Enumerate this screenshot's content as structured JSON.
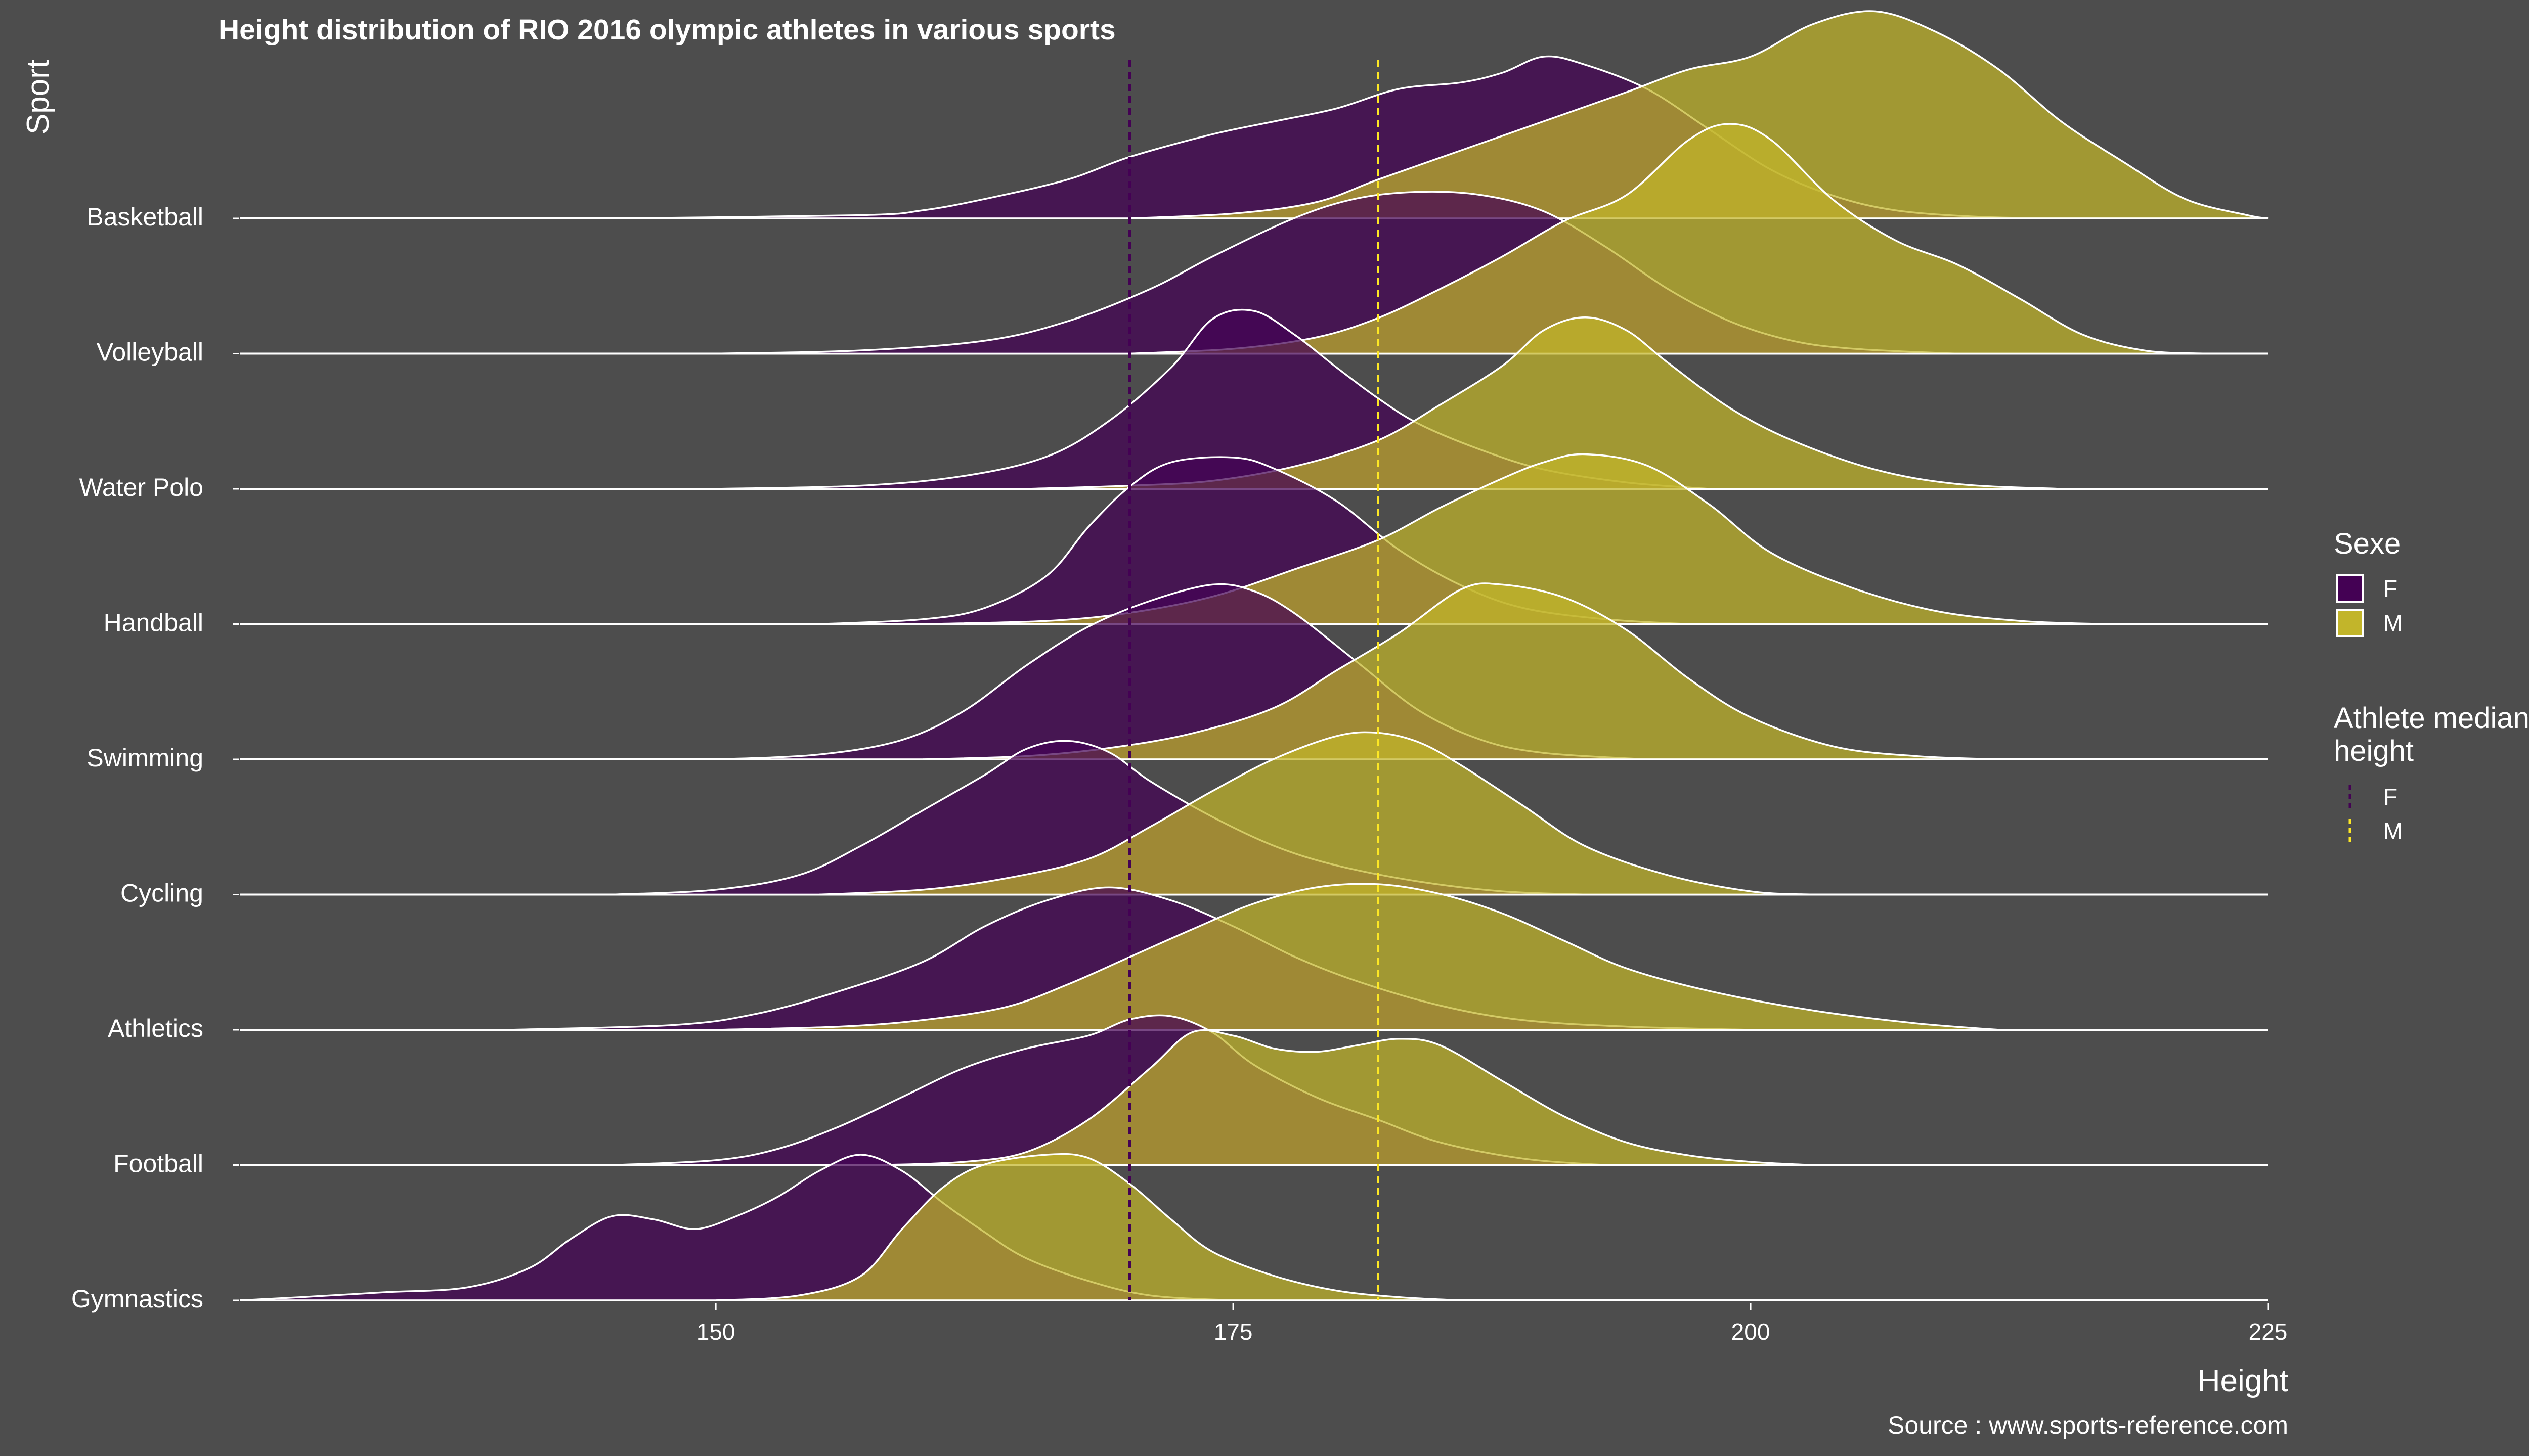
{
  "chart_data": {
    "type": "ridgeline",
    "title": "Height distribution of RIO 2016 olympic athletes in various sports",
    "xlabel": "Height",
    "ylabel": "Sport",
    "caption": "Source : www.sports-reference.com",
    "xlim": [
      127,
      225
    ],
    "xticks": [
      150,
      175,
      200,
      225
    ],
    "grid": false,
    "colors": {
      "background": "#4d4d4d",
      "F": "#440154",
      "M": "#c2b52a",
      "F_line": "#440154",
      "M_line": "#fde725",
      "outline": "#ffffff"
    },
    "legend": {
      "placement": "right",
      "sexe": {
        "title": "Sexe",
        "items": [
          {
            "label": "F",
            "key": "F"
          },
          {
            "label": "M",
            "key": "M"
          }
        ]
      },
      "median": {
        "title_line1": "Athlete median",
        "title_line2": "height",
        "items": [
          {
            "label": "F",
            "key": "F"
          },
          {
            "label": "M",
            "key": "M"
          }
        ]
      }
    },
    "median_height": {
      "F": 170,
      "M": 182
    },
    "sports": [
      {
        "name": "Basketball",
        "F": [
          [
            145,
            0
          ],
          [
            157,
            0.02
          ],
          [
            160,
            0.05
          ],
          [
            163,
            0.12
          ],
          [
            167,
            0.24
          ],
          [
            170,
            0.38
          ],
          [
            174,
            0.52
          ],
          [
            177,
            0.6
          ],
          [
            180,
            0.68
          ],
          [
            183,
            0.8
          ],
          [
            186,
            0.84
          ],
          [
            188,
            0.9
          ],
          [
            190,
            1.0
          ],
          [
            192,
            0.95
          ],
          [
            195,
            0.8
          ],
          [
            198,
            0.55
          ],
          [
            201,
            0.3
          ],
          [
            204,
            0.14
          ],
          [
            207,
            0.05
          ],
          [
            211,
            0.01
          ],
          [
            215,
            0
          ]
        ],
        "M": [
          [
            170,
            0
          ],
          [
            175,
            0.03
          ],
          [
            179,
            0.1
          ],
          [
            182,
            0.24
          ],
          [
            186,
            0.42
          ],
          [
            190,
            0.6
          ],
          [
            194,
            0.78
          ],
          [
            197,
            0.92
          ],
          [
            200,
            1.0
          ],
          [
            203,
            1.2
          ],
          [
            206,
            1.28
          ],
          [
            209,
            1.15
          ],
          [
            212,
            0.92
          ],
          [
            215,
            0.6
          ],
          [
            218,
            0.35
          ],
          [
            221,
            0.12
          ],
          [
            224,
            0.02
          ],
          [
            225,
            0
          ]
        ]
      },
      {
        "name": "Volleyball",
        "F": [
          [
            150,
            0
          ],
          [
            157,
            0.02
          ],
          [
            163,
            0.08
          ],
          [
            167,
            0.2
          ],
          [
            171,
            0.4
          ],
          [
            174,
            0.6
          ],
          [
            178,
            0.84
          ],
          [
            181,
            0.96
          ],
          [
            184,
            1.0
          ],
          [
            187,
            0.98
          ],
          [
            190,
            0.88
          ],
          [
            193,
            0.66
          ],
          [
            196,
            0.4
          ],
          [
            199,
            0.2
          ],
          [
            202,
            0.08
          ],
          [
            205,
            0.03
          ],
          [
            210,
            0
          ]
        ],
        "M": [
          [
            170,
            0
          ],
          [
            175,
            0.03
          ],
          [
            179,
            0.1
          ],
          [
            182,
            0.22
          ],
          [
            185,
            0.4
          ],
          [
            188,
            0.6
          ],
          [
            191,
            0.82
          ],
          [
            194,
            0.98
          ],
          [
            197,
            1.32
          ],
          [
            199,
            1.42
          ],
          [
            201,
            1.32
          ],
          [
            204,
            0.95
          ],
          [
            207,
            0.7
          ],
          [
            210,
            0.55
          ],
          [
            213,
            0.34
          ],
          [
            216,
            0.12
          ],
          [
            219,
            0.02
          ],
          [
            222,
            0
          ]
        ]
      },
      {
        "name": "Water Polo",
        "F": [
          [
            150,
            0
          ],
          [
            157,
            0.02
          ],
          [
            162,
            0.08
          ],
          [
            166,
            0.2
          ],
          [
            169,
            0.42
          ],
          [
            172,
            0.75
          ],
          [
            174,
            1.05
          ],
          [
            176,
            1.1
          ],
          [
            178,
            0.95
          ],
          [
            180,
            0.75
          ],
          [
            182,
            0.56
          ],
          [
            184,
            0.4
          ],
          [
            187,
            0.24
          ],
          [
            190,
            0.12
          ],
          [
            194,
            0.04
          ],
          [
            198,
            0
          ]
        ],
        "M": [
          [
            165,
            0
          ],
          [
            170,
            0.02
          ],
          [
            174,
            0.05
          ],
          [
            178,
            0.14
          ],
          [
            182,
            0.3
          ],
          [
            185,
            0.52
          ],
          [
            188,
            0.76
          ],
          [
            190,
            0.98
          ],
          [
            192,
            1.06
          ],
          [
            194,
            0.98
          ],
          [
            196,
            0.78
          ],
          [
            199,
            0.5
          ],
          [
            202,
            0.3
          ],
          [
            206,
            0.12
          ],
          [
            210,
            0.03
          ],
          [
            215,
            0
          ]
        ]
      },
      {
        "name": "Handball",
        "F": [
          [
            155,
            0
          ],
          [
            160,
            0.03
          ],
          [
            163,
            0.1
          ],
          [
            166,
            0.3
          ],
          [
            168,
            0.6
          ],
          [
            170,
            0.85
          ],
          [
            172,
            1.0
          ],
          [
            175,
            1.03
          ],
          [
            177,
            0.96
          ],
          [
            180,
            0.76
          ],
          [
            183,
            0.46
          ],
          [
            186,
            0.24
          ],
          [
            189,
            0.1
          ],
          [
            193,
            0.03
          ],
          [
            197,
            0
          ]
        ],
        "M": [
          [
            160,
            0
          ],
          [
            166,
            0.02
          ],
          [
            170,
            0.07
          ],
          [
            174,
            0.17
          ],
          [
            178,
            0.34
          ],
          [
            182,
            0.52
          ],
          [
            185,
            0.72
          ],
          [
            188,
            0.9
          ],
          [
            190,
            1.0
          ],
          [
            192,
            1.05
          ],
          [
            195,
            0.98
          ],
          [
            198,
            0.74
          ],
          [
            201,
            0.44
          ],
          [
            205,
            0.22
          ],
          [
            209,
            0.08
          ],
          [
            213,
            0.02
          ],
          [
            217,
            0
          ]
        ]
      },
      {
        "name": "Swimming",
        "F": [
          [
            150,
            0
          ],
          [
            155,
            0.03
          ],
          [
            159,
            0.12
          ],
          [
            162,
            0.3
          ],
          [
            165,
            0.58
          ],
          [
            168,
            0.82
          ],
          [
            171,
            0.98
          ],
          [
            174,
            1.08
          ],
          [
            176,
            1.04
          ],
          [
            178,
            0.9
          ],
          [
            181,
            0.6
          ],
          [
            184,
            0.3
          ],
          [
            187,
            0.12
          ],
          [
            190,
            0.04
          ],
          [
            195,
            0
          ]
        ],
        "M": [
          [
            160,
            0
          ],
          [
            165,
            0.02
          ],
          [
            169,
            0.07
          ],
          [
            173,
            0.16
          ],
          [
            177,
            0.32
          ],
          [
            180,
            0.55
          ],
          [
            183,
            0.78
          ],
          [
            186,
            1.05
          ],
          [
            188,
            1.08
          ],
          [
            191,
            1.0
          ],
          [
            194,
            0.8
          ],
          [
            197,
            0.5
          ],
          [
            200,
            0.26
          ],
          [
            204,
            0.08
          ],
          [
            208,
            0.02
          ],
          [
            212,
            0
          ]
        ]
      },
      {
        "name": "Cycling",
        "F": [
          [
            145,
            0
          ],
          [
            150,
            0.03
          ],
          [
            154,
            0.12
          ],
          [
            157,
            0.3
          ],
          [
            160,
            0.52
          ],
          [
            163,
            0.74
          ],
          [
            165,
            0.9
          ],
          [
            167,
            0.95
          ],
          [
            169,
            0.88
          ],
          [
            171,
            0.7
          ],
          [
            174,
            0.48
          ],
          [
            177,
            0.3
          ],
          [
            180,
            0.18
          ],
          [
            184,
            0.08
          ],
          [
            188,
            0.02
          ],
          [
            192,
            0
          ]
        ],
        "M": [
          [
            155,
            0
          ],
          [
            160,
            0.03
          ],
          [
            164,
            0.1
          ],
          [
            168,
            0.22
          ],
          [
            171,
            0.42
          ],
          [
            174,
            0.64
          ],
          [
            177,
            0.84
          ],
          [
            180,
            0.98
          ],
          [
            182,
            1.0
          ],
          [
            184,
            0.94
          ],
          [
            186,
            0.8
          ],
          [
            189,
            0.55
          ],
          [
            192,
            0.3
          ],
          [
            196,
            0.12
          ],
          [
            200,
            0.02
          ],
          [
            203,
            0
          ]
        ]
      },
      {
        "name": "Athletics",
        "F": [
          [
            140,
            0
          ],
          [
            148,
            0.03
          ],
          [
            152,
            0.1
          ],
          [
            156,
            0.24
          ],
          [
            160,
            0.42
          ],
          [
            163,
            0.64
          ],
          [
            166,
            0.8
          ],
          [
            169,
            0.88
          ],
          [
            172,
            0.8
          ],
          [
            175,
            0.64
          ],
          [
            178,
            0.45
          ],
          [
            181,
            0.3
          ],
          [
            185,
            0.15
          ],
          [
            189,
            0.06
          ],
          [
            194,
            0.02
          ],
          [
            200,
            0
          ]
        ],
        "M": [
          [
            150,
            0
          ],
          [
            156,
            0.02
          ],
          [
            160,
            0.06
          ],
          [
            164,
            0.14
          ],
          [
            167,
            0.28
          ],
          [
            170,
            0.45
          ],
          [
            173,
            0.62
          ],
          [
            176,
            0.78
          ],
          [
            179,
            0.88
          ],
          [
            182,
            0.9
          ],
          [
            185,
            0.84
          ],
          [
            188,
            0.72
          ],
          [
            191,
            0.55
          ],
          [
            194,
            0.38
          ],
          [
            198,
            0.24
          ],
          [
            203,
            0.12
          ],
          [
            208,
            0.04
          ],
          [
            212,
            0
          ]
        ]
      },
      {
        "name": "Football",
        "F": [
          [
            145,
            0
          ],
          [
            150,
            0.03
          ],
          [
            153,
            0.1
          ],
          [
            156,
            0.24
          ],
          [
            159,
            0.42
          ],
          [
            162,
            0.6
          ],
          [
            165,
            0.72
          ],
          [
            168,
            0.8
          ],
          [
            170,
            0.9
          ],
          [
            172,
            0.92
          ],
          [
            174,
            0.82
          ],
          [
            176,
            0.62
          ],
          [
            179,
            0.42
          ],
          [
            182,
            0.28
          ],
          [
            185,
            0.14
          ],
          [
            189,
            0.04
          ],
          [
            193,
            0
          ]
        ],
        "M": [
          [
            158,
            0
          ],
          [
            162,
            0.02
          ],
          [
            165,
            0.08
          ],
          [
            168,
            0.28
          ],
          [
            171,
            0.6
          ],
          [
            173,
            0.82
          ],
          [
            175,
            0.8
          ],
          [
            177,
            0.72
          ],
          [
            179,
            0.7
          ],
          [
            181,
            0.74
          ],
          [
            183,
            0.78
          ],
          [
            185,
            0.74
          ],
          [
            188,
            0.52
          ],
          [
            191,
            0.3
          ],
          [
            194,
            0.14
          ],
          [
            197,
            0.06
          ],
          [
            200,
            0.02
          ],
          [
            203,
            0
          ]
        ]
      },
      {
        "name": "Gymnastics",
        "F": [
          [
            127,
            0
          ],
          [
            130,
            0.02
          ],
          [
            134,
            0.05
          ],
          [
            138,
            0.08
          ],
          [
            141,
            0.2
          ],
          [
            143,
            0.38
          ],
          [
            145,
            0.52
          ],
          [
            147,
            0.5
          ],
          [
            149,
            0.44
          ],
          [
            151,
            0.52
          ],
          [
            153,
            0.64
          ],
          [
            155,
            0.8
          ],
          [
            157,
            0.9
          ],
          [
            159,
            0.8
          ],
          [
            161,
            0.6
          ],
          [
            163,
            0.42
          ],
          [
            165,
            0.26
          ],
          [
            168,
            0.12
          ],
          [
            171,
            0.03
          ],
          [
            175,
            0
          ]
        ],
        "M": [
          [
            150,
            0
          ],
          [
            154,
            0.03
          ],
          [
            157,
            0.15
          ],
          [
            159,
            0.44
          ],
          [
            161,
            0.7
          ],
          [
            163,
            0.84
          ],
          [
            166,
            0.9
          ],
          [
            168,
            0.88
          ],
          [
            170,
            0.72
          ],
          [
            172,
            0.5
          ],
          [
            174,
            0.3
          ],
          [
            177,
            0.15
          ],
          [
            180,
            0.06
          ],
          [
            183,
            0.02
          ],
          [
            186,
            0
          ]
        ]
      }
    ]
  }
}
